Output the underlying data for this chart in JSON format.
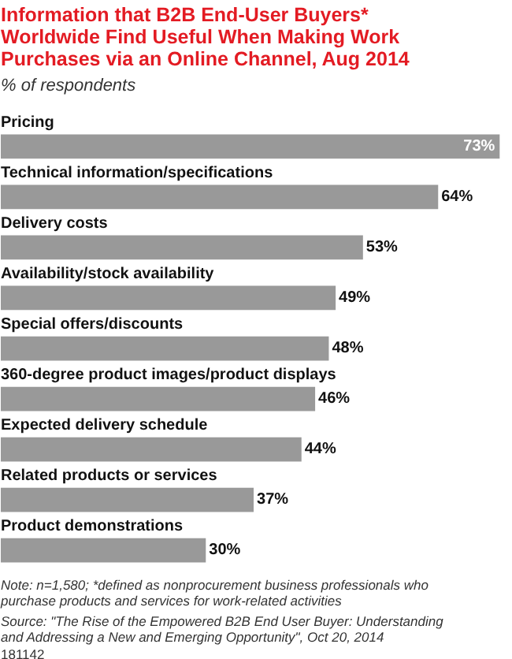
{
  "chart_data": {
    "type": "bar",
    "orientation": "horizontal",
    "title": "Information that B2B End-User Buyers* Worldwide Find Useful When Making Work Purchases via an Online Channel, Aug 2014",
    "subtitle": "% of respondents",
    "categories": [
      "Pricing",
      "Technical information/specifications",
      "Delivery costs",
      "Availability/stock availability",
      "Special offers/discounts",
      "360-degree product images/product displays",
      "Expected delivery schedule",
      "Related products or services",
      "Product demonstrations"
    ],
    "values": [
      73,
      64,
      53,
      49,
      48,
      46,
      44,
      37,
      30
    ],
    "value_labels": [
      "73%",
      "64%",
      "53%",
      "49%",
      "48%",
      "46%",
      "44%",
      "37%",
      "30%"
    ],
    "colors": [
      "#999999",
      "#999999",
      "#999999",
      "#999999",
      "#999999",
      "#999999",
      "#999999",
      "#999999",
      "#999999"
    ],
    "annotations": [
      "Note: n=1,580; *defined as nonprocurement business professionals who purchase products and services for work-related activities",
      "Source: \"The Rise of the Empowered B2B End User Buyer: Understanding and Addressing a New and Emerging Opportunity\", Oct 20, 2014",
      "181142"
    ]
  }
}
